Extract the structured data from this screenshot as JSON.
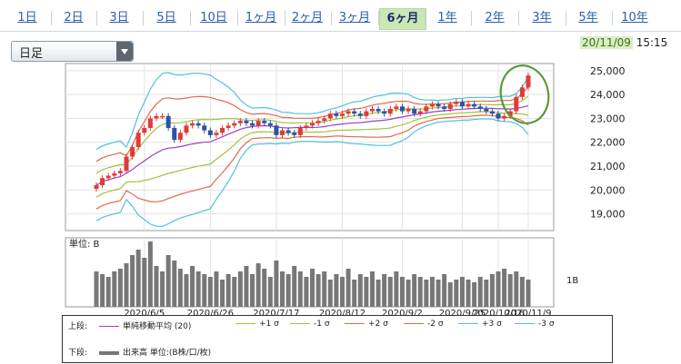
{
  "tabs": [
    {
      "label": "1日",
      "active": false
    },
    {
      "label": "2日",
      "active": false
    },
    {
      "label": "3日",
      "active": false
    },
    {
      "label": "5日",
      "active": false
    },
    {
      "label": "10日",
      "active": false
    },
    {
      "label": "1ヶ月",
      "active": false
    },
    {
      "label": "2ヶ月",
      "active": false
    },
    {
      "label": "3ヶ月",
      "active": false
    },
    {
      "label": "6ヶ月",
      "active": true
    },
    {
      "label": "1年",
      "active": false
    },
    {
      "label": "2年",
      "active": false
    },
    {
      "label": "3年",
      "active": false
    },
    {
      "label": "5年",
      "active": false
    },
    {
      "label": "10年",
      "active": false
    }
  ],
  "period_select": {
    "value": "日足"
  },
  "timestamp": {
    "date": "20/11/09",
    "time": "15:15"
  },
  "chart_data": {
    "type": "candlestick",
    "price_axis": {
      "ticks": [
        "25,000",
        "24,000",
        "23,000",
        "22,000",
        "21,000",
        "20,000",
        "19,000"
      ],
      "range": [
        18300,
        25300
      ]
    },
    "x_ticks": [
      "2020/6/5",
      "2020/6/26",
      "2020/7/17",
      "2020/8/12",
      "2020/9/2",
      "2020/9/25",
      "2020/10/16",
      "2020/11/9"
    ],
    "volume_axis": {
      "unit_label": "単位: B",
      "tick_label": "1B",
      "max": 2.4
    },
    "series_style": {
      "ma": "#9b3fc6",
      "s1": "#9ec43a",
      "s2": "#e2694c",
      "s3": "#51c2d8",
      "up": "#e03a3a",
      "down": "#2c52a8",
      "volume": "#777777"
    },
    "closes": [
      20200,
      20500,
      20600,
      20700,
      20800,
      21400,
      21800,
      22400,
      22600,
      23000,
      23100,
      23100,
      22600,
      22100,
      22400,
      22700,
      22800,
      22700,
      22500,
      22300,
      22400,
      22600,
      22700,
      22800,
      22900,
      22800,
      22700,
      22900,
      22800,
      22700,
      22300,
      22500,
      22400,
      22300,
      22600,
      22700,
      22800,
      22900,
      23000,
      23200,
      23100,
      23200,
      23300,
      23200,
      23100,
      23300,
      23400,
      23300,
      23200,
      23400,
      23500,
      23300,
      23400,
      23200,
      23300,
      23500,
      23600,
      23500,
      23400,
      23600,
      23700,
      23500,
      23600,
      23500,
      23400,
      23300,
      23200,
      23000,
      23100,
      23300,
      23900,
      24300,
      24800
    ],
    "volumes": [
      1.3,
      1.2,
      1.1,
      1.3,
      1.4,
      1.6,
      1.9,
      2.1,
      1.8,
      2.4,
      1.5,
      1.3,
      1.9,
      1.7,
      1.4,
      1.2,
      1.5,
      1.3,
      1.2,
      1.1,
      1.3,
      1.0,
      1.2,
      1.1,
      1.3,
      1.5,
      1.2,
      1.6,
      1.4,
      1.1,
      1.7,
      1.3,
      1.2,
      1.5,
      1.3,
      1.1,
      1.4,
      1.2,
      1.3,
      1.0,
      1.2,
      1.1,
      1.4,
      1.0,
      1.2,
      1.1,
      1.3,
      1.0,
      1.2,
      1.1,
      1.3,
      1.1,
      1.0,
      1.2,
      1.1,
      1.0,
      1.1,
      1.0,
      1.2,
      0.9,
      1.0,
      1.1,
      1.0,
      0.9,
      1.1,
      1.0,
      1.2,
      1.3,
      1.4,
      1.2,
      1.3,
      1.1,
      1.0
    ]
  },
  "legend": {
    "upper_label": "上段:",
    "lower_label": "下段:",
    "items": [
      {
        "label": "単純移動平均 (20)",
        "color": "#9b3fc6",
        "thick": false
      },
      {
        "label": "+1 σ",
        "color": "#9ec43a",
        "thick": false
      },
      {
        "label": "-1 σ",
        "color": "#9ec43a",
        "thick": false
      },
      {
        "label": "+2 σ",
        "color": "#e2694c",
        "thick": false
      },
      {
        "label": "-2 σ",
        "color": "#e2694c",
        "thick": false
      },
      {
        "label": "+3 σ",
        "color": "#51c2d8",
        "thick": false
      },
      {
        "label": "-3 σ",
        "color": "#51c2d8",
        "thick": false
      }
    ],
    "volume_item": {
      "label": "出来高 単位:(B株/口/枚)",
      "color": "#777777",
      "thick": true
    }
  }
}
